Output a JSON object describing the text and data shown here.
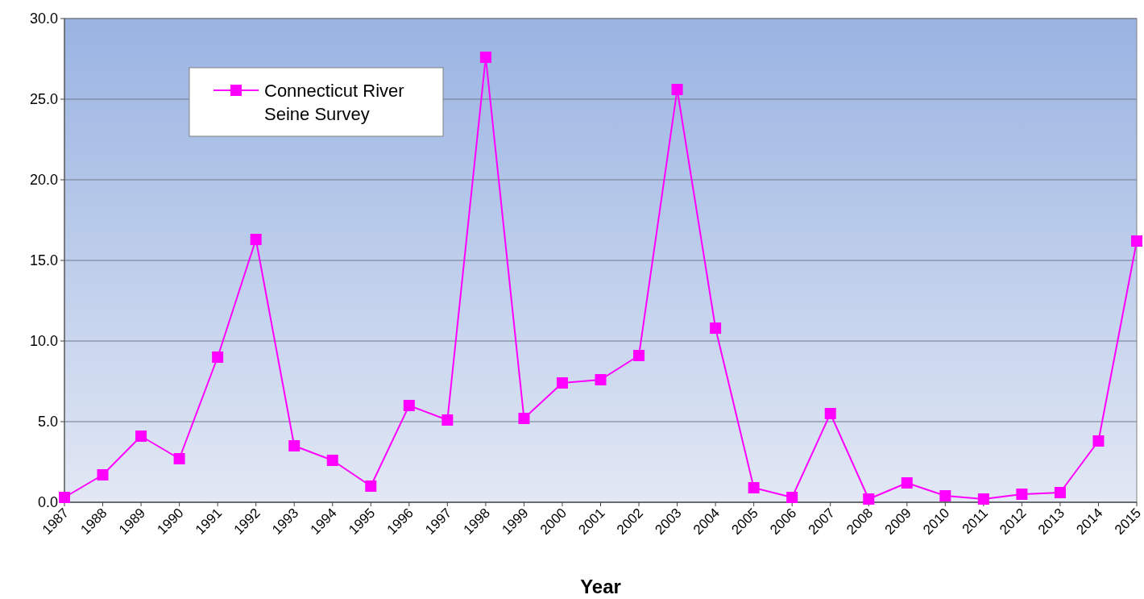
{
  "chart_data": {
    "type": "line",
    "xlabel": "Year",
    "categories": [
      "1987",
      "1988",
      "1989",
      "1990",
      "1991",
      "1992",
      "1993",
      "1994",
      "1995",
      "1996",
      "1997",
      "1998",
      "1999",
      "2000",
      "2001",
      "2002",
      "2003",
      "2004",
      "2005",
      "2006",
      "2007",
      "2008",
      "2009",
      "2010",
      "2011",
      "2012",
      "2013",
      "2014",
      "2015"
    ],
    "series": [
      {
        "name": "Connecticut River Seine Survey",
        "color": "#ff00ff",
        "values": [
          0.3,
          1.7,
          4.1,
          2.7,
          9.0,
          16.3,
          3.5,
          2.6,
          1.0,
          6.0,
          5.1,
          27.6,
          5.2,
          7.4,
          7.6,
          9.1,
          25.6,
          10.8,
          0.9,
          0.3,
          5.5,
          0.2,
          1.2,
          0.4,
          0.2,
          0.5,
          0.6,
          3.8,
          16.2
        ]
      }
    ],
    "ylim": [
      0,
      30
    ],
    "yticks": [
      {
        "value": 0,
        "label": "0.0"
      },
      {
        "value": 5,
        "label": "5.0"
      },
      {
        "value": 10,
        "label": "10.0"
      },
      {
        "value": 15,
        "label": "15.0"
      },
      {
        "value": 20,
        "label": "20.0"
      },
      {
        "value": 25,
        "label": "25.0"
      },
      {
        "value": 30,
        "label": "30.0"
      }
    ],
    "grid": "y",
    "legend": "top left",
    "marker": "square",
    "line_style": "solid"
  }
}
